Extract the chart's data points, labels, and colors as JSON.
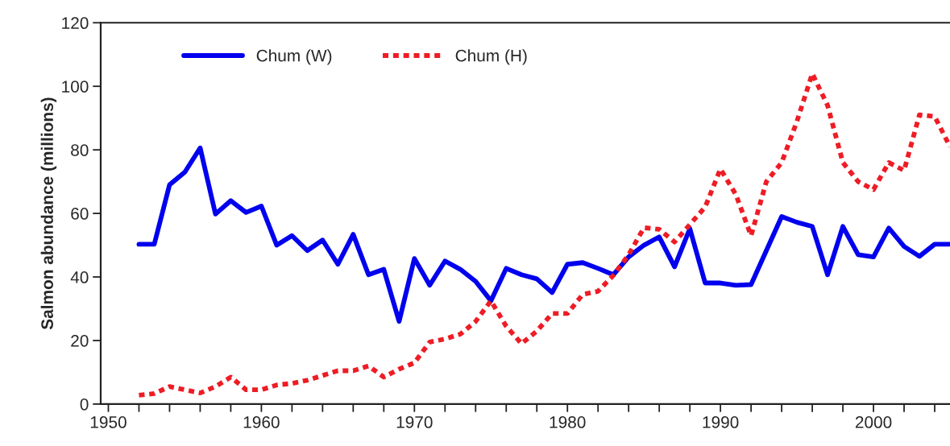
{
  "chart_data": {
    "type": "line",
    "ylabel": "Salmon abundance (millions)",
    "x": [
      1952,
      1953,
      1954,
      1955,
      1956,
      1957,
      1958,
      1959,
      1960,
      1961,
      1962,
      1963,
      1964,
      1965,
      1966,
      1967,
      1968,
      1969,
      1970,
      1971,
      1972,
      1973,
      1974,
      1975,
      1976,
      1977,
      1978,
      1979,
      1980,
      1981,
      1982,
      1983,
      1984,
      1985,
      1986,
      1987,
      1988,
      1989,
      1990,
      1991,
      1992,
      1993,
      1994,
      1995,
      1996,
      1997,
      1998,
      1999,
      2000,
      2001,
      2002,
      2003,
      2004,
      2005
    ],
    "series": [
      {
        "name": "Chum (W)",
        "color": "#0000ee",
        "line_style": "solid",
        "values": [
          50.3,
          50.3,
          69,
          73,
          80.6,
          59.8,
          64,
          60.3,
          62.3,
          50,
          53,
          48.3,
          51.6,
          44,
          53.4,
          40.7,
          42.4,
          26,
          45.8,
          37.4,
          45,
          42.4,
          38.6,
          32.5,
          42.7,
          40.7,
          39.4,
          35.1,
          44,
          44.5,
          42.7,
          40.7,
          46.3,
          50,
          52.6,
          43.2,
          55.2,
          38.1,
          38.1,
          37.4,
          37.6,
          48.3,
          59,
          57.2,
          55.9,
          40.7,
          55.9,
          47,
          46.3,
          55.4,
          49.6,
          46.5,
          50.3,
          50.3
        ]
      },
      {
        "name": "Chum (H)",
        "color": "#ee1c25",
        "line_style": "dashed",
        "values": [
          2.8,
          3.3,
          5.5,
          4.5,
          3.5,
          5.5,
          8.5,
          4.5,
          4.5,
          6,
          6.5,
          7.5,
          9,
          10.5,
          10.5,
          12,
          8.5,
          11,
          13,
          19.5,
          20.5,
          22,
          26,
          32.5,
          24.5,
          19,
          23,
          28.5,
          28.5,
          34.5,
          35.5,
          40.5,
          47,
          55.5,
          55,
          51,
          56.5,
          62,
          74,
          66,
          53,
          70,
          76,
          89,
          104,
          94,
          76,
          70,
          67.5,
          76,
          73.5,
          91,
          90.5,
          81
        ]
      }
    ],
    "xlim": [
      1949.5,
      2005
    ],
    "xticks": [
      1950,
      {
        "value": 1952,
        "label": null
      },
      {
        "value": 1954,
        "label": null
      },
      {
        "value": 1956,
        "label": null
      },
      {
        "value": 1958,
        "label": null
      },
      1960,
      {
        "value": 1962,
        "label": null
      },
      {
        "value": 1964,
        "label": null
      },
      {
        "value": 1966,
        "label": null
      },
      {
        "value": 1968,
        "label": null
      },
      1970,
      {
        "value": 1972,
        "label": null
      },
      {
        "value": 1974,
        "label": null
      },
      {
        "value": 1976,
        "label": null
      },
      {
        "value": 1978,
        "label": null
      },
      1980,
      {
        "value": 1982,
        "label": null
      },
      {
        "value": 1984,
        "label": null
      },
      {
        "value": 1986,
        "label": null
      },
      {
        "value": 1988,
        "label": null
      },
      1990,
      {
        "value": 1992,
        "label": null
      },
      {
        "value": 1994,
        "label": null
      },
      {
        "value": 1996,
        "label": null
      },
      {
        "value": 1998,
        "label": null
      },
      2000,
      {
        "value": 2002,
        "label": null
      },
      {
        "value": 2004,
        "label": null
      }
    ],
    "ylim": [
      0,
      120
    ],
    "yticks": [
      0,
      20,
      40,
      60,
      80,
      100,
      120
    ],
    "grid": false,
    "legend": "top left",
    "marker": "none"
  }
}
